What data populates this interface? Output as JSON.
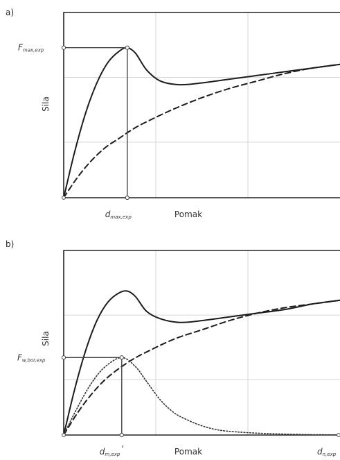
{
  "chart_data": [
    {
      "panel_label": "a)",
      "type": "line",
      "xlabel": "Pomak",
      "ylabel": "Sila",
      "xlim": [
        0,
        1
      ],
      "ylim": [
        0,
        1
      ],
      "grid": true,
      "markers": {
        "y": {
          "main": "F",
          "sub": "max,exp",
          "value": 0.81,
          "at_x": 0.23
        },
        "x": {
          "main": "d",
          "sub": "max,exp",
          "value": 0.23
        }
      },
      "series": [
        {
          "style": "solid",
          "x": [
            0,
            0.04,
            0.08,
            0.12,
            0.16,
            0.2,
            0.23,
            0.26,
            0.3,
            0.35,
            0.42,
            0.5,
            0.6,
            0.7,
            0.8,
            0.9,
            1.0
          ],
          "y": [
            0,
            0.25,
            0.46,
            0.62,
            0.73,
            0.79,
            0.81,
            0.78,
            0.69,
            0.63,
            0.61,
            0.62,
            0.64,
            0.66,
            0.68,
            0.7,
            0.72
          ]
        },
        {
          "style": "dashed",
          "x": [
            0,
            0.05,
            0.1,
            0.15,
            0.2,
            0.25,
            0.3,
            0.4,
            0.5,
            0.6,
            0.7,
            0.8,
            0.9,
            1.0
          ],
          "y": [
            0,
            0.11,
            0.2,
            0.27,
            0.32,
            0.37,
            0.41,
            0.48,
            0.54,
            0.59,
            0.63,
            0.67,
            0.7,
            0.72
          ]
        }
      ]
    },
    {
      "panel_label": "b)",
      "type": "line",
      "xlabel": "Pomak",
      "ylabel": "Sila",
      "xlim": [
        0,
        1
      ],
      "ylim": [
        0,
        1
      ],
      "grid": true,
      "markers": {
        "y": {
          "main": "F",
          "sub": "w,bor,exp",
          "value": 0.42,
          "at_x": 0.21
        },
        "x": {
          "main": "d",
          "sub": "m,exp",
          "suffix": "'",
          "value": 0.21
        },
        "x_end": {
          "main": "d",
          "sub": "n,exp",
          "value": 1.0
        }
      },
      "series": [
        {
          "style": "solid",
          "x": [
            0,
            0.04,
            0.08,
            0.12,
            0.16,
            0.2,
            0.23,
            0.26,
            0.3,
            0.35,
            0.42,
            0.5,
            0.6,
            0.7,
            0.8,
            0.9,
            1.0
          ],
          "y": [
            0,
            0.25,
            0.46,
            0.62,
            0.72,
            0.77,
            0.78,
            0.75,
            0.67,
            0.63,
            0.61,
            0.62,
            0.64,
            0.66,
            0.68,
            0.71,
            0.73
          ]
        },
        {
          "style": "dashed",
          "x": [
            0,
            0.05,
            0.1,
            0.15,
            0.2,
            0.25,
            0.3,
            0.4,
            0.5,
            0.6,
            0.7,
            0.8,
            0.9,
            1.0
          ],
          "y": [
            0,
            0.12,
            0.22,
            0.3,
            0.36,
            0.41,
            0.45,
            0.52,
            0.57,
            0.62,
            0.66,
            0.69,
            0.71,
            0.73
          ]
        },
        {
          "style": "dotted",
          "x": [
            0,
            0.05,
            0.1,
            0.15,
            0.21,
            0.26,
            0.3,
            0.35,
            0.4,
            0.45,
            0.5,
            0.55,
            0.6,
            0.7,
            0.8,
            0.9,
            1.0
          ],
          "y": [
            0,
            0.15,
            0.28,
            0.37,
            0.42,
            0.37,
            0.29,
            0.19,
            0.12,
            0.08,
            0.05,
            0.03,
            0.02,
            0.01,
            0.005,
            0.002,
            0.001
          ]
        }
      ]
    }
  ]
}
